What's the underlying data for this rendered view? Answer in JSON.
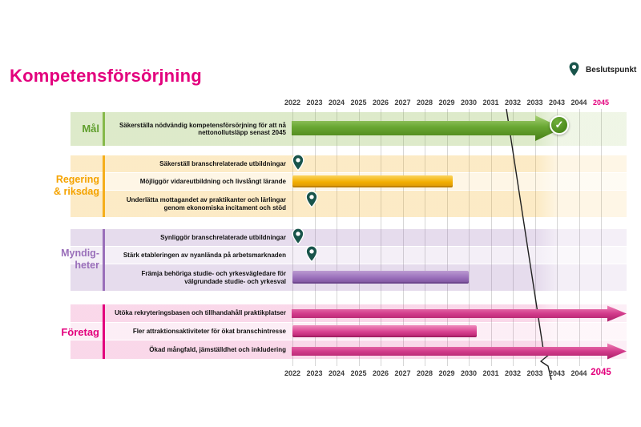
{
  "title": "Kompetensförsörjning",
  "legend": {
    "label": "Beslutspunkt"
  },
  "icons": {
    "check": "✓",
    "pin": "beslutspunkt-pin"
  },
  "timeline": {
    "years": [
      "2022",
      "2023",
      "2024",
      "2025",
      "2026",
      "2027",
      "2028",
      "2029",
      "2030",
      "2031",
      "2032",
      "2033",
      "2043",
      "2044",
      "2045"
    ],
    "highlight_year": "2045",
    "axis_break_between": [
      "2033",
      "2043"
    ]
  },
  "colors": {
    "title": "#e3007d",
    "goal_green": "#5f9e2c",
    "government_orange": "#f5a300",
    "agencies_purple": "#9a6fba",
    "companies_pink": "#e3007d",
    "decision_pin": "#19544b"
  },
  "groups": [
    {
      "label": "Mål",
      "rows": [
        {
          "text": "Säkerställa nödvändig kompetensförsörjning för att nå nettonollutsläpp senast 2045",
          "bar": {
            "type": "arrow",
            "start": "2022",
            "end": "2045",
            "end_marker": "check"
          }
        }
      ]
    },
    {
      "label": "Regering & riksdag",
      "rows": [
        {
          "text": "Säkerställ branschrelaterade utbildningar",
          "decision_point": "2022"
        },
        {
          "text": "Möjliggör vidareutbildning och livslångt lärande",
          "bar": {
            "type": "bar",
            "start": "2022",
            "end": "2029"
          }
        },
        {
          "text": "Underlätta mottagandet av praktikanter och lärlingar genom ekonomiska incitament och stöd",
          "decision_point": "2023"
        }
      ]
    },
    {
      "label": "Myndig-heter",
      "rows": [
        {
          "text": "Synliggör branschrelaterade utbildningar",
          "decision_point": "2022"
        },
        {
          "text": "Stärk etableringen av nyanlända på arbetsmarknaden",
          "decision_point": "2023"
        },
        {
          "text": "Främja behöriga studie- och yrkesvägledare för välgrundade studie- och yrkesval",
          "bar": {
            "type": "bar",
            "start": "2022",
            "end": "2030"
          }
        }
      ]
    },
    {
      "label": "Företag",
      "rows": [
        {
          "text": "Utöka rekryteringsbasen och tillhandahåll praktikplatser",
          "bar": {
            "type": "arrow",
            "start": "2022",
            "end": "2045"
          }
        },
        {
          "text": "Fler attraktionsaktiviteter för ökat branschintresse",
          "bar": {
            "type": "bar",
            "start": "2022",
            "end": "2030"
          }
        },
        {
          "text": "Ökad mångfald, jämställdhet och inkludering",
          "bar": {
            "type": "arrow",
            "start": "2022",
            "end": "2045"
          }
        }
      ]
    }
  ]
}
